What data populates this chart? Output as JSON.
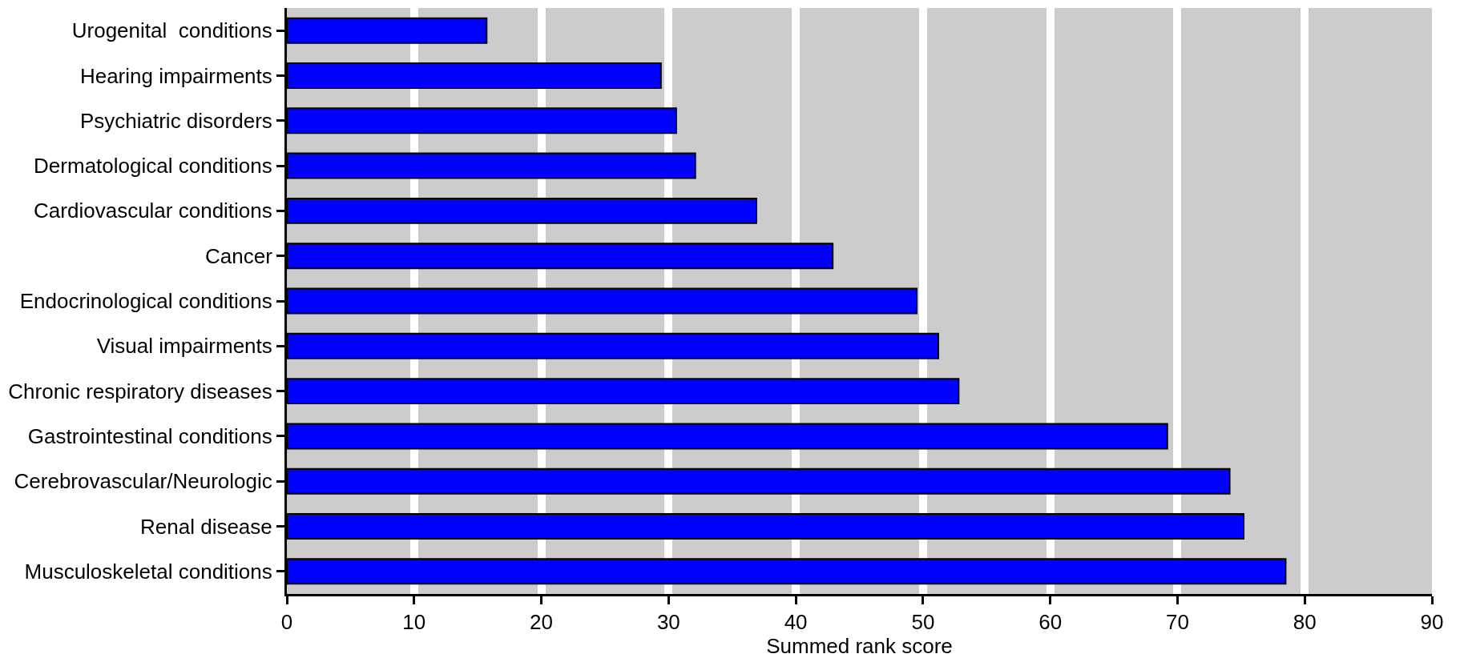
{
  "chart_data": {
    "type": "bar",
    "orientation": "horizontal",
    "xlabel": "Summed rank score",
    "categories": [
      "Urogenital  conditions",
      "Hearing impairments",
      "Psychiatric disorders",
      "Dermatological conditions",
      "Cardiovascular conditions",
      "Cancer",
      "Endocrinological conditions",
      "Visual impairments",
      "Chronic respiratory diseases",
      "Gastrointestinal conditions",
      "Cerebrovascular/Neurologic",
      "Renal disease",
      "Musculoskeletal conditions"
    ],
    "values": [
      15.7,
      29.4,
      30.6,
      32.1,
      36.9,
      42.9,
      49.5,
      51.2,
      52.8,
      69.2,
      74.1,
      75.2,
      78.5
    ],
    "color": "#0000ff",
    "xlim": [
      0,
      90
    ],
    "xticks": [
      0,
      10,
      20,
      30,
      40,
      50,
      60,
      70,
      80,
      90
    ],
    "grid": "x"
  }
}
